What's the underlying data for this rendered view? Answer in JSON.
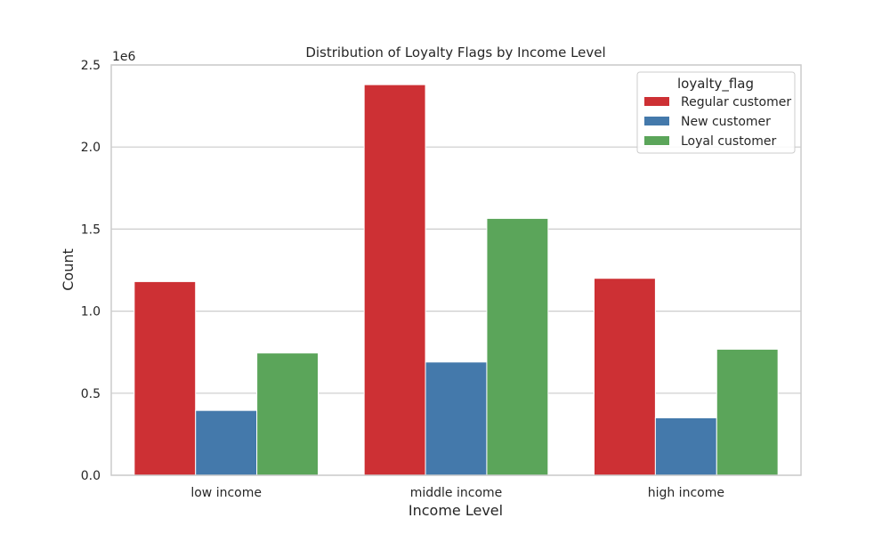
{
  "chart_data": {
    "type": "bar",
    "title": "Distribution of Loyalty Flags by Income Level",
    "xlabel": "Income Level",
    "ylabel": "Count",
    "y_multiplier_label": "1e6",
    "categories": [
      "low income",
      "middle income",
      "high income"
    ],
    "series": [
      {
        "name": "Regular customer",
        "color": "#cd3034",
        "values": [
          1180000,
          2380000,
          1200000
        ]
      },
      {
        "name": "New customer",
        "color": "#4479ab",
        "values": [
          395000,
          690000,
          350000
        ]
      },
      {
        "name": "Loyal customer",
        "color": "#5ba55a",
        "values": [
          745000,
          1565000,
          768000
        ]
      }
    ],
    "ylim": [
      0,
      2500000
    ],
    "yticks": [
      0,
      500000,
      1000000,
      1500000,
      2000000,
      2500000
    ],
    "ytick_labels": [
      "0.0",
      "0.5",
      "1.0",
      "1.5",
      "2.0",
      "2.5"
    ],
    "grid": "horizontal",
    "legend_title": "loyalty_flag",
    "legend_position": "top-right"
  }
}
